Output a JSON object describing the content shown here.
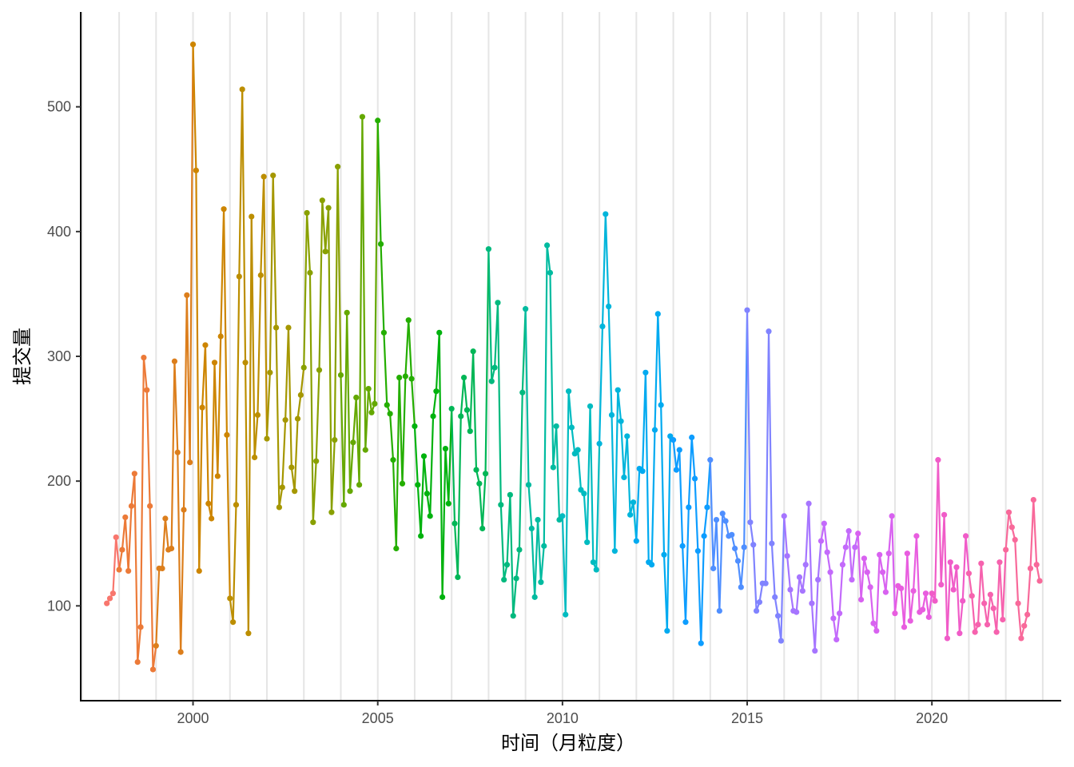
{
  "chart_data": {
    "type": "line",
    "xlabel": "时间（月粒度）",
    "ylabel": "提交量",
    "xlim": [
      1996.96,
      2023.5
    ],
    "ylim": [
      24,
      576
    ],
    "x_ticks": [
      2000,
      2005,
      2010,
      2015,
      2020
    ],
    "y_ticks": [
      100,
      200,
      300,
      400,
      500
    ],
    "grid": "vertical lines at each year",
    "legend": "none",
    "color_by": "year",
    "year_colors": {
      "1997": "#F8766D",
      "1998": "#EC7A38",
      "1999": "#DC7E1C",
      "2000": "#CD8500",
      "2001": "#BC8E00",
      "2002": "#A59700",
      "2003": "#89A000",
      "2004": "#64A800",
      "2005": "#24AE00",
      "2006": "#00B20E",
      "2007": "#00B656",
      "2008": "#00B97E",
      "2009": "#00BBA0",
      "2010": "#00BBC0",
      "2011": "#00B5DB",
      "2012": "#00AAF0",
      "2013": "#0D9DFF",
      "2014": "#4F8FFF",
      "2015": "#8083FF",
      "2016": "#A675FF",
      "2017": "#C36AFB",
      "2018": "#D862F0",
      "2019": "#E85DDF",
      "2020": "#F05CC8",
      "2021": "#F662AE",
      "2022": "#F8699A"
    },
    "series": [
      {
        "year": 1997,
        "start_month": 9,
        "values": [
          102,
          106,
          110,
          155
        ]
      },
      {
        "year": 1998,
        "values": [
          129,
          145,
          171,
          128,
          180,
          206,
          55,
          83,
          299,
          273,
          180,
          49
        ]
      },
      {
        "year": 1999,
        "values": [
          68,
          130,
          130,
          170,
          145,
          146,
          296,
          223,
          63,
          177,
          349,
          215
        ]
      },
      {
        "year": 2000,
        "values": [
          550,
          449,
          128,
          259,
          309,
          182,
          170,
          295,
          204,
          316,
          418,
          237
        ]
      },
      {
        "year": 2001,
        "values": [
          106,
          87,
          181,
          364,
          514,
          295,
          78,
          412,
          219,
          253,
          365,
          444
        ]
      },
      {
        "year": 2002,
        "values": [
          234,
          287,
          445,
          323,
          179,
          195,
          249,
          323,
          211,
          192,
          250,
          269
        ]
      },
      {
        "year": 2003,
        "values": [
          291,
          415,
          367,
          167,
          216,
          289,
          425,
          384,
          419,
          175,
          233,
          452
        ]
      },
      {
        "year": 2004,
        "values": [
          285,
          181,
          335,
          192,
          231,
          267,
          197,
          492,
          225,
          274,
          255,
          262
        ]
      },
      {
        "year": 2005,
        "values": [
          489,
          390,
          319,
          261,
          254,
          217,
          146,
          283,
          198,
          284,
          329,
          282
        ]
      },
      {
        "year": 2006,
        "values": [
          244,
          197,
          156,
          220,
          190,
          172,
          252,
          272,
          319,
          107,
          226,
          182
        ]
      },
      {
        "year": 2007,
        "values": [
          258,
          166,
          123,
          252,
          283,
          257,
          240,
          304,
          209,
          198,
          162,
          206
        ]
      },
      {
        "year": 2008,
        "values": [
          386,
          280,
          291,
          343,
          181,
          121,
          133,
          189,
          92,
          122,
          145,
          271
        ]
      },
      {
        "year": 2009,
        "values": [
          338,
          197,
          162,
          107,
          169,
          119,
          148,
          389,
          367,
          211,
          244,
          169
        ]
      },
      {
        "year": 2010,
        "values": [
          172,
          93,
          272,
          243,
          222,
          225,
          193,
          190,
          151,
          260,
          135,
          129
        ]
      },
      {
        "year": 2011,
        "values": [
          230,
          324,
          414,
          340,
          253,
          144,
          273,
          248,
          203,
          236,
          173,
          183
        ]
      },
      {
        "year": 2012,
        "values": [
          152,
          210,
          208,
          287,
          135,
          133,
          241,
          334,
          261,
          141,
          80,
          236
        ]
      },
      {
        "year": 2013,
        "values": [
          233,
          209,
          225,
          148,
          87,
          179,
          235,
          202,
          144,
          70,
          156,
          179
        ]
      },
      {
        "year": 2014,
        "values": [
          217,
          130,
          169,
          96,
          174,
          168,
          156,
          157,
          146,
          136,
          115,
          147
        ]
      },
      {
        "year": 2015,
        "values": [
          337,
          167,
          149,
          96,
          103,
          118,
          118,
          320,
          150,
          107,
          92,
          72
        ]
      },
      {
        "year": 2016,
        "values": [
          172,
          140,
          113,
          96,
          95,
          123,
          112,
          133,
          182,
          102,
          64,
          121
        ]
      },
      {
        "year": 2017,
        "values": [
          152,
          166,
          143,
          127,
          90,
          73,
          94,
          133,
          147,
          160,
          121,
          147
        ]
      },
      {
        "year": 2018,
        "values": [
          158,
          105,
          138,
          127,
          115,
          86,
          80,
          141,
          127,
          111,
          142,
          172
        ]
      },
      {
        "year": 2019,
        "values": [
          94,
          116,
          114,
          83,
          142,
          88,
          112,
          156,
          95,
          97,
          110,
          91
        ]
      },
      {
        "year": 2020,
        "values": [
          110,
          104,
          217,
          117,
          173,
          74,
          135,
          113,
          131,
          78,
          104,
          156
        ]
      },
      {
        "year": 2021,
        "values": [
          126,
          108,
          79,
          85,
          134,
          102,
          85,
          109,
          98,
          79,
          135,
          89
        ]
      },
      {
        "year": 2022,
        "values": [
          145,
          175,
          163,
          153,
          102,
          74,
          84,
          93,
          130,
          185,
          133,
          120
        ]
      }
    ]
  }
}
